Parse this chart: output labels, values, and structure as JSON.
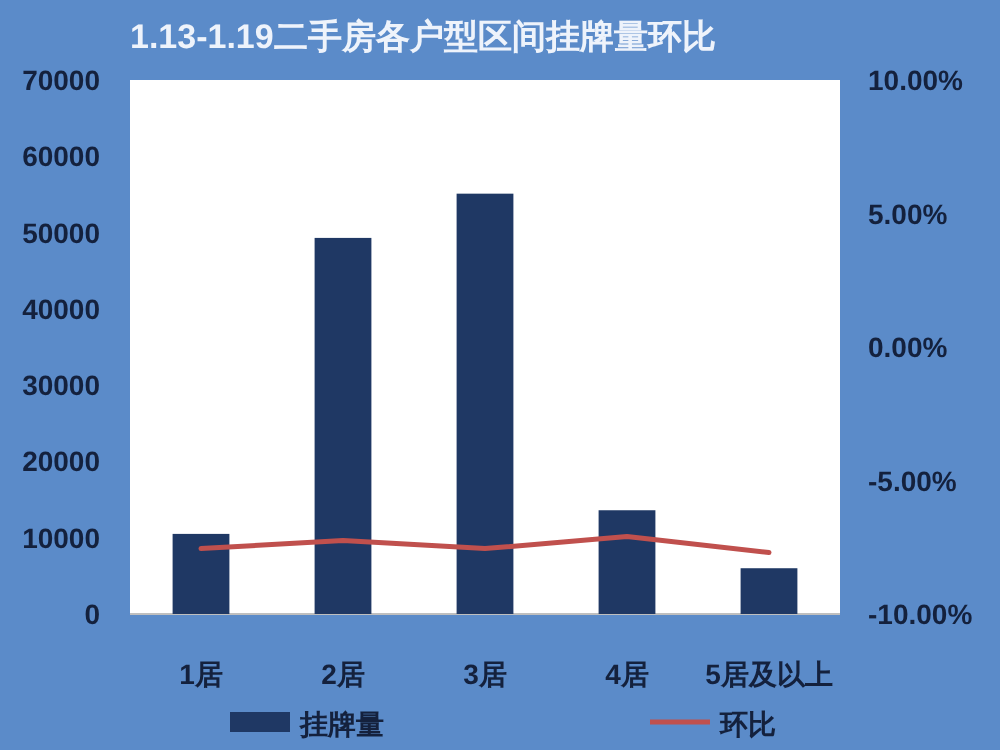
{
  "chart_data": {
    "type": "bar",
    "title": "1.13-1.19二手房各户型区间挂牌量环比",
    "categories": [
      "1居",
      "2居",
      "3居",
      "4居",
      "5居及以上"
    ],
    "series": [
      {
        "name": "挂牌量",
        "color": "#1f3864",
        "values": [
          10500,
          49300,
          55100,
          13600,
          6000
        ]
      },
      {
        "name": "环比",
        "type": "line",
        "axis": "y2",
        "color": "#c0504d",
        "values": [
          -7.55,
          -7.25,
          -7.55,
          -7.1,
          -7.7
        ]
      }
    ],
    "ylim": [
      0,
      70000
    ],
    "yticks": [
      0,
      10000,
      20000,
      30000,
      40000,
      50000,
      60000,
      70000
    ],
    "y2lim": [
      -10,
      10
    ],
    "y2ticks": [
      {
        "value": -10,
        "label": "-10.00%"
      },
      {
        "value": -5,
        "label": "-5.00%"
      },
      {
        "value": 0,
        "label": "0.00%"
      },
      {
        "value": 5,
        "label": "5.00%"
      },
      {
        "value": 10,
        "label": "10.00%"
      }
    ],
    "legend": "bottom"
  }
}
